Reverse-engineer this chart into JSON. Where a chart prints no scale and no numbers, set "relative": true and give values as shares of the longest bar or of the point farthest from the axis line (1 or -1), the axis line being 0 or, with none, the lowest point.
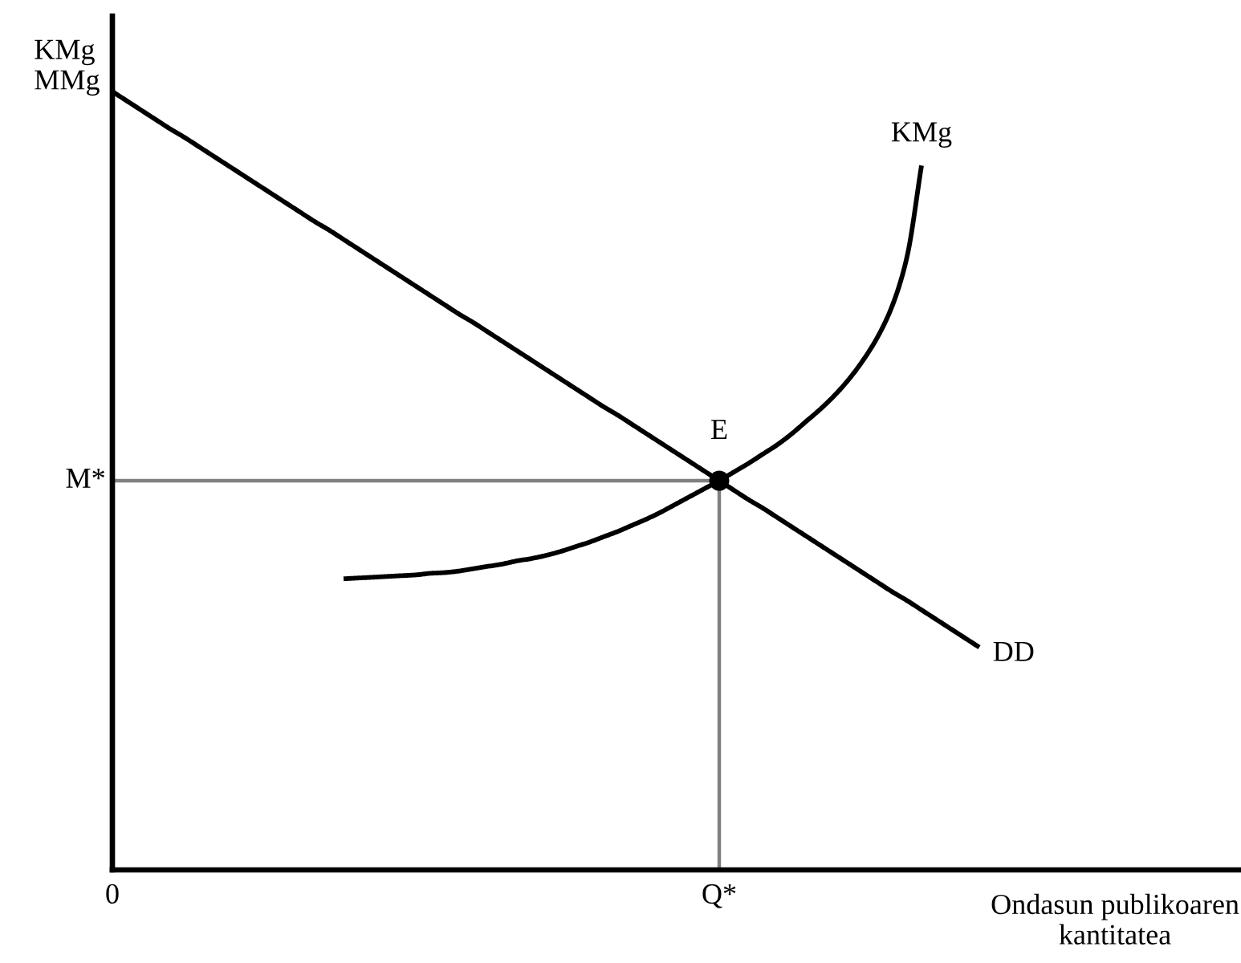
{
  "chart_data": {
    "type": "line",
    "relative": true,
    "xlabel": "Ondasun publikoaren\nkantitatea",
    "ylabel": "KMg\nMMg",
    "categories": [
      "0",
      null,
      null,
      null,
      null,
      null,
      null,
      null,
      null,
      null,
      null,
      null,
      null,
      null,
      null,
      null,
      null,
      null,
      null,
      null,
      null,
      null,
      null,
      null,
      null,
      null,
      null,
      null,
      null,
      null,
      null,
      null,
      null,
      null,
      null,
      null,
      null,
      null,
      null,
      null,
      null,
      null,
      "Q*",
      null,
      null,
      null,
      null,
      null,
      null,
      null,
      null,
      null,
      null,
      null,
      null,
      null,
      null,
      null,
      null,
      null,
      null
    ],
    "annotations": [
      {
        "text": "E",
        "x": "Q*",
        "y": 0.5
      }
    ],
    "ref_lines": [
      {
        "axis": "y",
        "value": 0.5,
        "label": "M*",
        "color": "#808080"
      }
    ],
    "series": [
      {
        "name": "DD",
        "color": "#000000",
        "values": [
          1,
          0.988,
          0.976,
          0.964,
          0.952,
          0.941,
          0.929,
          0.917,
          0.905,
          0.893,
          0.881,
          0.869,
          0.857,
          0.845,
          0.833,
          0.822,
          0.81,
          0.798,
          0.786,
          0.774,
          0.762,
          0.75,
          0.738,
          0.726,
          0.714,
          0.703,
          0.691,
          0.679,
          0.667,
          0.655,
          0.643,
          0.631,
          0.619,
          0.607,
          0.595,
          0.584,
          0.572,
          0.56,
          0.548,
          0.536,
          0.524,
          0.512,
          0.5,
          0.488,
          0.476,
          0.465,
          0.453,
          0.441,
          0.429,
          0.417,
          0.405,
          0.393,
          0.381,
          0.369,
          0.357,
          0.346,
          0.334,
          0.322,
          0.31,
          0.298,
          0.286
        ]
      },
      {
        "name": "KMg",
        "color": "#000000",
        "values": [
          null,
          null,
          null,
          null,
          null,
          null,
          null,
          null,
          null,
          null,
          null,
          null,
          null,
          null,
          null,
          null,
          0.374,
          0.375,
          0.376,
          0.377,
          0.378,
          0.379,
          0.381,
          0.382,
          0.384,
          0.387,
          0.39,
          0.393,
          0.397,
          0.4,
          0.404,
          0.409,
          0.415,
          0.421,
          0.428,
          0.435,
          0.443,
          0.451,
          0.46,
          0.47,
          0.48,
          0.49,
          0.5,
          0.511,
          0.522,
          0.534,
          0.546,
          0.56,
          0.576,
          0.592,
          0.61,
          0.631,
          0.656,
          0.686,
          0.726,
          0.788,
          0.905,
          null,
          null,
          null,
          null
        ]
      },
      {
        "type": "lollipop",
        "color": "#000000",
        "marker": "circle",
        "values": [
          null,
          null,
          null,
          null,
          null,
          null,
          null,
          null,
          null,
          null,
          null,
          null,
          null,
          null,
          null,
          null,
          null,
          null,
          null,
          null,
          null,
          null,
          null,
          null,
          null,
          null,
          null,
          null,
          null,
          null,
          null,
          null,
          null,
          null,
          null,
          null,
          null,
          null,
          null,
          null,
          null,
          null,
          0.5,
          null,
          null,
          null,
          null,
          null,
          null,
          null,
          null,
          null,
          null,
          null,
          null,
          null,
          null,
          null,
          null,
          null,
          null
        ]
      }
    ]
  }
}
